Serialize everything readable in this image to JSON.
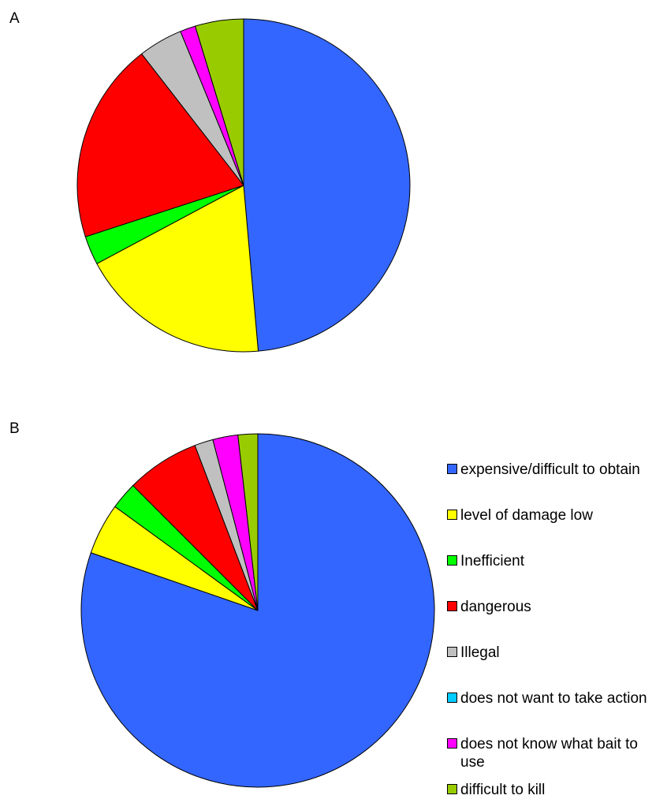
{
  "chart_data": [
    {
      "type": "pie",
      "panel_label": "A",
      "start_angle": "12 o'clock",
      "direction": "clockwise",
      "legend": "none",
      "categories": [
        "expensive/difficult to obtain",
        "level of damage low",
        "Inefficient",
        "dangerous",
        "Illegal",
        "does not want to take action",
        "does not know what bait to use",
        "difficult to kill"
      ],
      "values": [
        48.6,
        18.6,
        2.8,
        19.5,
        4.3,
        0.0,
        1.5,
        4.7
      ],
      "colors": [
        "#3366FF",
        "#FFFF00",
        "#00FF00",
        "#FF0000",
        "#C0C0C0",
        "#00CCFF",
        "#FF00FF",
        "#99CC00"
      ]
    },
    {
      "type": "pie",
      "panel_label": "B",
      "start_angle": "12 o'clock",
      "direction": "clockwise",
      "legend": "right",
      "categories": [
        "expensive/difficult to obtain",
        "level of damage low",
        "Inefficient",
        "dangerous",
        "Illegal",
        "does not want to take action",
        "does not know what bait to use",
        "difficult to kill"
      ],
      "values": [
        80.3,
        4.7,
        2.5,
        6.7,
        1.7,
        0.0,
        2.3,
        1.8
      ],
      "colors": [
        "#3366FF",
        "#FFFF00",
        "#00FF00",
        "#FF0000",
        "#C0C0C0",
        "#00CCFF",
        "#FF00FF",
        "#99CC00"
      ]
    }
  ],
  "legend": {
    "items": [
      {
        "label": "expensive/difficult to obtain",
        "color": "#3366FF"
      },
      {
        "label": "level of damage low",
        "color": "#FFFF00"
      },
      {
        "label": "Inefficient",
        "color": "#00FF00"
      },
      {
        "label": "dangerous",
        "color": "#FF0000"
      },
      {
        "label": "Illegal",
        "color": "#C0C0C0"
      },
      {
        "label": "does not want to take action",
        "color": "#00CCFF"
      },
      {
        "label": "does not know what bait to use",
        "color": "#FF00FF"
      },
      {
        "label": "difficult to kill",
        "color": "#99CC00"
      }
    ]
  }
}
